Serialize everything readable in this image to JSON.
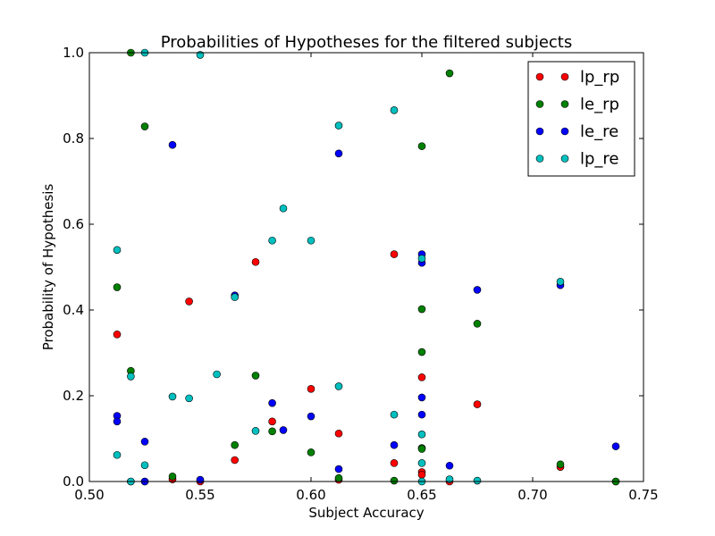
{
  "chart_data": {
    "type": "scatter",
    "title": "Probabilities of Hypotheses for the filtered subjects",
    "xlabel": "Subject Accuracy",
    "ylabel": "Probability of Hypothesis",
    "xlim": [
      0.5,
      0.75
    ],
    "ylim": [
      0.0,
      1.0
    ],
    "xticks": [
      "0.50",
      "0.55",
      "0.60",
      "0.65",
      "0.70",
      "0.75"
    ],
    "yticks": [
      "0.0",
      "0.2",
      "0.4",
      "0.6",
      "0.8",
      "1.0"
    ],
    "grid": false,
    "legend_position": "top-right",
    "series": [
      {
        "name": "lp_rp",
        "color": "#ff0000",
        "points": [
          [
            0.5125,
            0.343
          ],
          [
            0.5187,
            0.0
          ],
          [
            0.525,
            0.0
          ],
          [
            0.5375,
            0.005
          ],
          [
            0.545,
            0.42
          ],
          [
            0.55,
            0.0
          ],
          [
            0.5656,
            0.05
          ],
          [
            0.575,
            0.512
          ],
          [
            0.5825,
            0.14
          ],
          [
            0.6,
            0.216
          ],
          [
            0.6125,
            0.112
          ],
          [
            0.6125,
            0.004
          ],
          [
            0.6375,
            0.043
          ],
          [
            0.6375,
            0.53
          ],
          [
            0.65,
            0.243
          ],
          [
            0.65,
            0.022
          ],
          [
            0.65,
            0.016
          ],
          [
            0.6625,
            0.0
          ],
          [
            0.675,
            0.18
          ],
          [
            0.7125,
            0.034
          ],
          [
            0.7375,
            0.0
          ]
        ]
      },
      {
        "name": "le_rp",
        "color": "#008000",
        "points": [
          [
            0.5125,
            0.453
          ],
          [
            0.5187,
            1.0
          ],
          [
            0.5187,
            0.258
          ],
          [
            0.525,
            0.828
          ],
          [
            0.5375,
            0.012
          ],
          [
            0.5656,
            0.085
          ],
          [
            0.575,
            0.247
          ],
          [
            0.5825,
            0.117
          ],
          [
            0.6,
            0.068
          ],
          [
            0.6125,
            0.008
          ],
          [
            0.6375,
            0.002
          ],
          [
            0.65,
            0.782
          ],
          [
            0.65,
            0.402
          ],
          [
            0.65,
            0.302
          ],
          [
            0.65,
            0.078
          ],
          [
            0.65,
            0.076
          ],
          [
            0.6625,
            0.952
          ],
          [
            0.675,
            0.368
          ],
          [
            0.7125,
            0.04
          ],
          [
            0.7375,
            0.0
          ]
        ]
      },
      {
        "name": "le_re",
        "color": "#0000ff",
        "points": [
          [
            0.5125,
            0.153
          ],
          [
            0.5125,
            0.14
          ],
          [
            0.525,
            0.093
          ],
          [
            0.525,
            0.0
          ],
          [
            0.5375,
            0.785
          ],
          [
            0.55,
            0.004
          ],
          [
            0.5656,
            0.434
          ],
          [
            0.5825,
            0.183
          ],
          [
            0.5875,
            0.12
          ],
          [
            0.6,
            0.152
          ],
          [
            0.6125,
            0.765
          ],
          [
            0.6125,
            0.029
          ],
          [
            0.6375,
            0.085
          ],
          [
            0.65,
            0.53
          ],
          [
            0.65,
            0.51
          ],
          [
            0.65,
            0.196
          ],
          [
            0.65,
            0.156
          ],
          [
            0.6625,
            0.037
          ],
          [
            0.675,
            0.447
          ],
          [
            0.7125,
            0.458
          ],
          [
            0.7375,
            0.082
          ]
        ]
      },
      {
        "name": "lp_re",
        "color": "#00bfbf",
        "points": [
          [
            0.5125,
            0.54
          ],
          [
            0.5125,
            0.062
          ],
          [
            0.5187,
            0.245
          ],
          [
            0.5187,
            0.0
          ],
          [
            0.525,
            1.0
          ],
          [
            0.525,
            0.038
          ],
          [
            0.5375,
            0.198
          ],
          [
            0.545,
            0.194
          ],
          [
            0.55,
            0.995
          ],
          [
            0.5575,
            0.25
          ],
          [
            0.5656,
            0.43
          ],
          [
            0.575,
            0.118
          ],
          [
            0.5825,
            0.562
          ],
          [
            0.5875,
            0.637
          ],
          [
            0.6,
            0.562
          ],
          [
            0.6125,
            0.83
          ],
          [
            0.6125,
            0.222
          ],
          [
            0.6375,
            0.866
          ],
          [
            0.6375,
            0.156
          ],
          [
            0.65,
            0.52
          ],
          [
            0.65,
            0.11
          ],
          [
            0.65,
            0.043
          ],
          [
            0.65,
            0.0
          ],
          [
            0.6625,
            0.005
          ],
          [
            0.675,
            0.002
          ],
          [
            0.7125,
            0.466
          ]
        ]
      }
    ]
  }
}
